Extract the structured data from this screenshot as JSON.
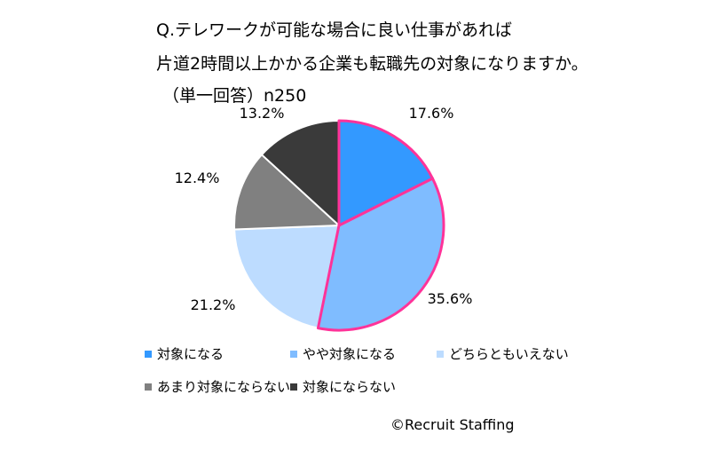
{
  "title": {
    "line1": "Q.テレワークが可能な場合に良い仕事があれば",
    "line2": "片道2時間以上かかる企業も転職先の対象になりますか。",
    "line3": "（単一回答）n250"
  },
  "chart_data": {
    "type": "pie",
    "categories": [
      "対象になる",
      "やや対象になる",
      "どちらともいえない",
      "あまり対象にならない",
      "対象にならない"
    ],
    "values": [
      17.6,
      35.6,
      21.2,
      12.4,
      13.2
    ],
    "labels": [
      "17.6%",
      "35.6%",
      "21.2%",
      "12.4%",
      "13.2%"
    ],
    "colors": [
      "#3399ff",
      "#7fbcff",
      "#bddcff",
      "#808080",
      "#3a3a3a"
    ],
    "highlight_color": "#ff3399",
    "highlighted": [
      0,
      1
    ],
    "start_angle_deg": 0,
    "direction": "clockwise",
    "legend_position": "bottom"
  },
  "credit": "©Recruit Staffing"
}
